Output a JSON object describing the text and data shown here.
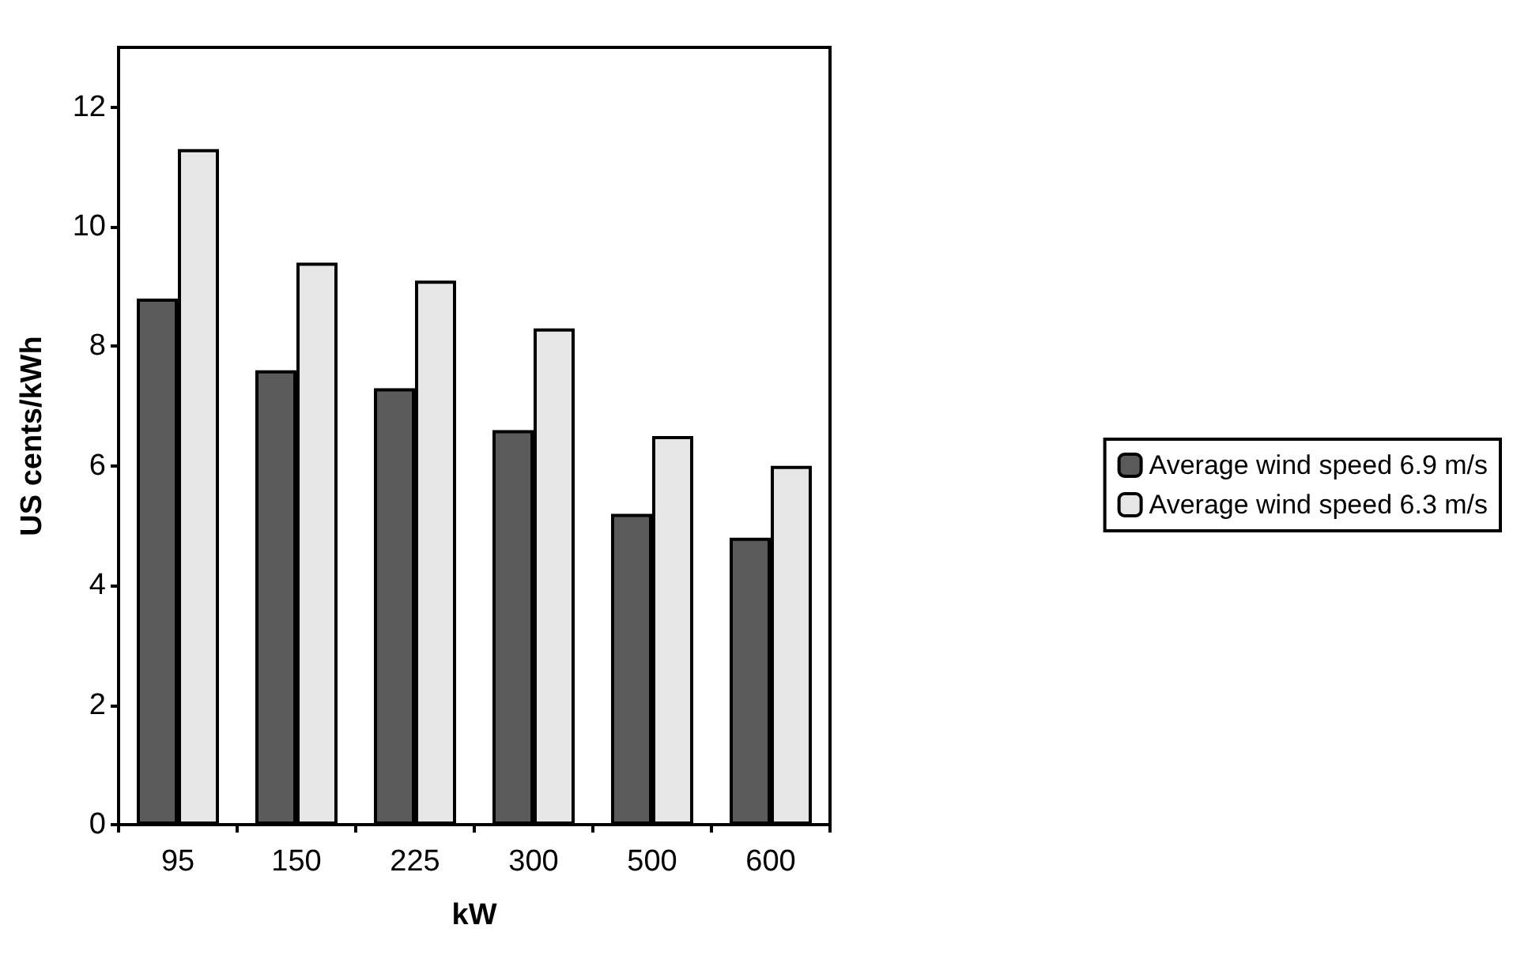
{
  "chart_data": {
    "type": "bar",
    "xlabel": "kW",
    "ylabel": "US cents/kWh",
    "categories": [
      "95",
      "150",
      "225",
      "300",
      "500",
      "600"
    ],
    "series": [
      {
        "name": "Average wind speed 6.9 m/s",
        "color": "#5a5a5a",
        "values": [
          8.8,
          7.6,
          7.3,
          6.6,
          5.2,
          4.8
        ]
      },
      {
        "name": "Average wind speed 6.3 m/s",
        "color": "#e6e6e6",
        "values": [
          11.3,
          9.4,
          9.1,
          8.3,
          6.5,
          6.0
        ]
      }
    ],
    "ylim": [
      0,
      13
    ],
    "yticks": [
      0,
      2,
      4,
      6,
      8,
      10,
      12
    ],
    "grid": false,
    "legend": "right"
  }
}
